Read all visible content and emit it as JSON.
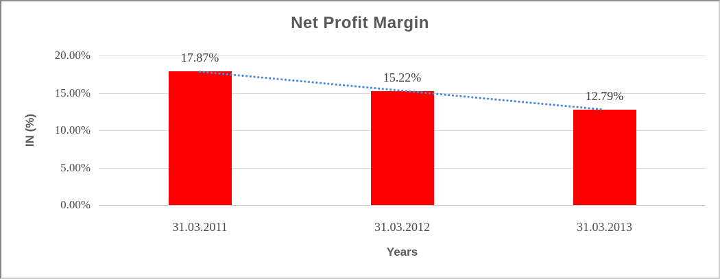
{
  "chart_data": {
    "type": "bar",
    "title": "Net Profit Margin",
    "xlabel": "Years",
    "ylabel": "IN (%)",
    "categories": [
      "31.03.2011",
      "31.03.2012",
      "31.03.2013"
    ],
    "values": [
      17.87,
      15.22,
      12.79
    ],
    "data_labels": [
      "17.87%",
      "15.22%",
      "12.79%"
    ],
    "yticks": [
      "0.00%",
      "5.00%",
      "10.00%",
      "15.00%",
      "20.00%"
    ],
    "ylim": [
      0,
      20
    ],
    "grid": true,
    "legend": "none",
    "bar_color": "#ff0000",
    "trendline": {
      "type": "linear",
      "style": "dotted",
      "color": "#4a89dd"
    }
  }
}
